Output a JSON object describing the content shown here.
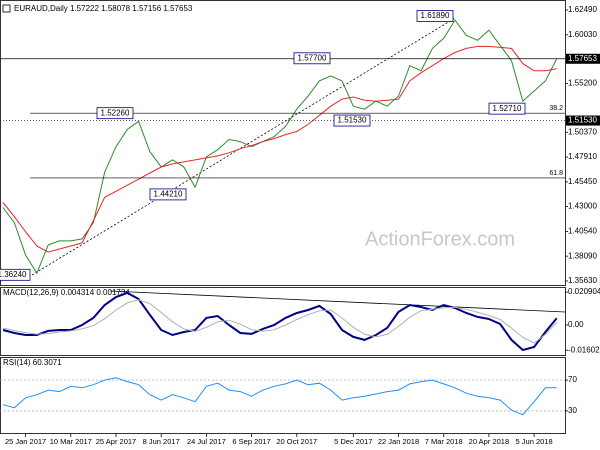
{
  "chart_data": [
    {
      "type": "line",
      "title": "EURAUD,Daily 1.57222 1.58078 1.57156 1.57653",
      "watermark": "ActionForex.com",
      "categories": [
        null,
        null,
        "25 Jan 2017",
        null,
        null,
        null,
        "10 Mar 2017",
        null,
        null,
        null,
        "25 Apr 2017",
        null,
        null,
        null,
        "8 Jun 2017",
        null,
        null,
        null,
        "24 Jul 2017",
        null,
        null,
        null,
        "6 Sep 2017",
        null,
        null,
        null,
        "20 Oct 2017",
        null,
        null,
        null,
        null,
        "5 Dec 2017",
        null,
        null,
        null,
        "22 Jan 2018",
        null,
        null,
        null,
        "7 Mar 2018",
        null,
        null,
        null,
        "20 Apr 2018",
        null,
        null,
        null,
        "5 Jun 2018",
        null,
        null
      ],
      "series": [
        {
          "color": "#2e8b2e",
          "values": [
            1.4291,
            1.4141,
            1.3819,
            1.3639,
            1.392,
            1.396,
            1.396,
            1.398,
            1.4141,
            1.4643,
            1.4894,
            1.5064,
            1.5146,
            1.4844,
            1.4694,
            1.4764,
            1.4694,
            1.4492,
            1.4793,
            1.4864,
            1.4965,
            1.4944,
            1.4894,
            1.4944,
            1.4994,
            1.5095,
            1.5265,
            1.5396,
            1.5546,
            1.5596,
            1.5546,
            1.5295,
            1.5265,
            1.5346,
            1.5295,
            1.5396,
            1.5697,
            1.5647,
            1.5868,
            1.5968,
            1.6149,
            1.5998,
            1.5948,
            1.6048,
            1.5898,
            1.5747,
            1.5346,
            1.5446,
            1.5546,
            1.5765
          ]
        },
        {
          "color": "#e8262b",
          "values": [
            1.4341,
            1.4201,
            1.405,
            1.391,
            1.3849,
            1.388,
            1.391,
            1.394,
            1.4161,
            1.4392,
            1.4452,
            1.4512,
            1.4572,
            1.4633,
            1.4693,
            1.4723,
            1.4743,
            1.4763,
            1.4783,
            1.4803,
            1.4833,
            1.4874,
            1.4904,
            1.4944,
            1.4974,
            1.5014,
            1.5044,
            1.5115,
            1.5205,
            1.5295,
            1.5366,
            1.5386,
            1.5355,
            1.5345,
            1.5355,
            1.5366,
            1.5546,
            1.5627,
            1.5697,
            1.5767,
            1.5827,
            1.5868,
            1.5888,
            1.5888,
            1.5878,
            1.5868,
            1.5717,
            1.5647,
            1.5647,
            1.5667
          ]
        }
      ],
      "ylim": [
        1.3523,
        1.6328
      ],
      "yticks": [
        {
          "value": 1.6249,
          "label": "1.62490"
        },
        {
          "value": 1.6003,
          "label": "1.60030"
        },
        {
          "value": 1.552,
          "label": "1.55200"
        },
        {
          "value": 1.5037,
          "label": "1.50370"
        },
        {
          "value": 1.4791,
          "label": "1.47910"
        },
        {
          "value": 1.4545,
          "label": "1.45450"
        },
        {
          "value": 1.43,
          "label": "1.43000"
        },
        {
          "value": 1.4054,
          "label": "1.40540"
        },
        {
          "value": 1.3809,
          "label": "1.38090"
        },
        {
          "value": 1.3563,
          "label": "1.35630"
        }
      ],
      "price_markers": [
        1.57653,
        {
          "value": 1.5153,
          "label": "1.51530"
        }
      ],
      "fib_levels": [
        {
          "value": 1.5226,
          "label": "38.2"
        },
        {
          "value": 1.4584,
          "label": "61.8"
        }
      ],
      "annotations": [
        {
          "value": 1.3624,
          "label": "1.36240"
        },
        {
          "value": 1.5226,
          "label": "1.52260"
        },
        {
          "value": 1.4421,
          "label": "1.44210"
        },
        {
          "value": 1.577,
          "label": "1.57700"
        },
        {
          "value": 1.5153,
          "label": "1.51530"
        },
        {
          "value": 1.6189,
          "label": "1.61890"
        },
        {
          "value": 1.5271,
          "label": "1.52710"
        }
      ]
    },
    {
      "type": "line",
      "title": "MACD(12,26,9) 0.004314 0.001734",
      "series": [
        {
          "color": "#00008b",
          "values": [
            -0.0032,
            -0.0051,
            -0.0064,
            -0.0064,
            -0.0038,
            -0.0032,
            -0.0032,
            0.0,
            0.0045,
            0.0127,
            0.0178,
            0.0204,
            0.0165,
            0.0064,
            -0.0032,
            -0.0064,
            -0.0045,
            -0.0032,
            0.0045,
            0.0057,
            0.0,
            -0.0051,
            -0.0057,
            -0.0025,
            0.0,
            0.0045,
            0.0076,
            0.0095,
            0.0121,
            0.007,
            -0.0032,
            -0.0076,
            -0.0095,
            -0.0064,
            -0.0019,
            0.0083,
            0.0127,
            0.0114,
            0.0095,
            0.0127,
            0.0108,
            0.0076,
            0.0051,
            0.0038,
            0.0006,
            -0.0095,
            -0.0159,
            -0.014,
            -0.0045,
            0.004314
          ]
        },
        {
          "color": "#b0b0b0",
          "values": [
            -0.002,
            -0.0035,
            -0.005,
            -0.0058,
            -0.0055,
            -0.0045,
            -0.0038,
            -0.0025,
            -0.0005,
            0.004,
            0.0095,
            0.014,
            0.016,
            0.0135,
            0.008,
            0.002,
            -0.0025,
            -0.004,
            -0.0015,
            0.002,
            0.003,
            0.0005,
            -0.003,
            -0.004,
            -0.003,
            0.0,
            0.0035,
            0.0065,
            0.009,
            0.0095,
            0.0045,
            -0.0015,
            -0.006,
            -0.0075,
            -0.006,
            -0.001,
            0.005,
            0.009,
            0.01,
            0.011,
            0.0112,
            0.01,
            0.008,
            0.006,
            0.0035,
            -0.002,
            -0.008,
            -0.0115,
            -0.006,
            0.001734
          ]
        }
      ],
      "ylim": [
        -0.0191,
        0.0235
      ],
      "yticks": [
        0.020904,
        {
          "value": 0,
          "label": "0.00"
        },
        -0.016023
      ]
    },
    {
      "type": "line",
      "title": "RSI(14) 60.3071",
      "series": [
        {
          "color": "#1e90ff",
          "values": [
            38,
            34,
            47,
            51,
            57,
            55,
            62,
            60,
            64,
            70,
            73,
            68,
            64,
            51,
            44,
            51,
            47,
            42,
            62,
            66,
            57,
            55,
            49,
            57,
            62,
            65,
            70,
            64,
            66,
            57,
            44,
            47,
            49,
            52,
            55,
            57,
            65,
            68,
            70,
            65,
            60,
            53,
            49,
            47,
            44,
            31,
            25,
            42,
            60,
            60.3071
          ]
        }
      ],
      "ylim": [
        0,
        100
      ],
      "yticks": [
        70,
        30
      ]
    }
  ]
}
